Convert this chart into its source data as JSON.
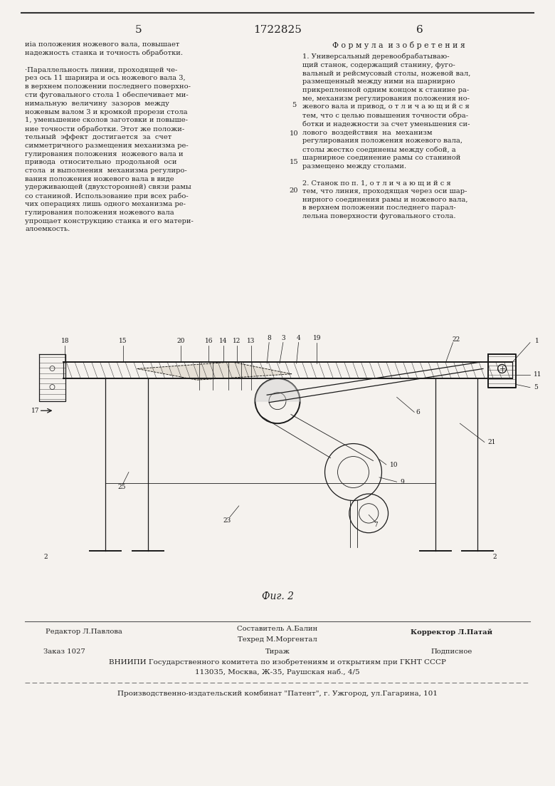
{
  "bg_color": "#f0ede8",
  "page_color": "#f5f2ee",
  "top_line_color": "#333333",
  "text_color": "#222222",
  "header_page_left": "5",
  "header_patent_num": "1722825",
  "header_page_right": "6",
  "left_col_text": "иia положения ножевого вала, повышает\nнадежность станка и точность обработки.\n\n·Параллельность линии, проходящей че-\nрез ось 11 шарнира и ось ножевого вала 3,\nв верхнем положении последнего поверхно-\nсти фуговального стола 1 обеспечивает ми-\nнимальную  величину  зазоров  между\nножевым валом 3 и кромкой прорези стола\n1, уменьшение сколов заготовки и повыше-\nние точности обработки. Этот же положи-\nтельный  эффект  достигается  за  счет\nсимметричного размещения механизма ре-\nгулирования положения  ножевого вала и\nпривода  относительно  продольной  оси\nстола  и выполнения  механизма регулиро-\nвания положения ножевого вала в виде\nудерживающей (двухсторонней) связи рамы\nсо станиной. Использование при всех рабо-\nчих операциях лишь одного механизма ре-\nгулирования положения ножевого вала\nупрощает конструкцию станка и его матери-\nалоемкость.",
  "right_col_header": "Ф о р м у л а  и з о б р е т е н и я",
  "right_col_line_numbers": [
    "5",
    "10",
    "15",
    "20"
  ],
  "right_col_text": "1. Универсальный деревообрабатываю-\nщий станок, содержащий станину, фуго-\nвальный и рейсмусовый столы, ножевой вал,\nразмещенный между ними на шарнирно\nприкрепленной одним концом к станине ра-\nме, механизм регулирования положения но-\nжевого вала и привод, о т л и ч а ю щ и й с я\nтем, что с целью повышения точности обра-\nботки и надежности за счет уменьшения си-\nлового  воздействия  на  механизм\nрегулирования положения ножевого вала,\nстолы жестко соединены между собой, а\nшарнирное соединение рамы со станиной\nразмещено между столами.\n\n2. Станок по п. 1, о т л и ч а ю щ и й с я\nтем, что линия, проходящая через оси шар-\nнирного соединения рамы и ножевого вала,\nв верхнем положении последнего парал-\nлельна поверхности фуговального стола.",
  "fig_caption": "Фиг. 2",
  "footer_line1_left": "Редактор Л.Павлова",
  "footer_line1_center_top": "Составитель А.Балин",
  "footer_line1_center_bot": "Техред М.Моргентал",
  "footer_line1_right": "Корректор Л.Патай",
  "footer_line2_left": "Заказ 1027",
  "footer_line2_center": "Тираж",
  "footer_line2_right": "Подписное",
  "footer_line3": "ВНИИПИ Государственного комитета по изобретениям и открытиям при ГКНТ СССР",
  "footer_line4": "113035, Москва, Ж-35, Раушская наб., 4/5",
  "footer_line5": "Производственно-издательский комбинат \"Патент\", г. Ужгород, ул.Гагарина, 101",
  "separator_line_color": "#555555"
}
